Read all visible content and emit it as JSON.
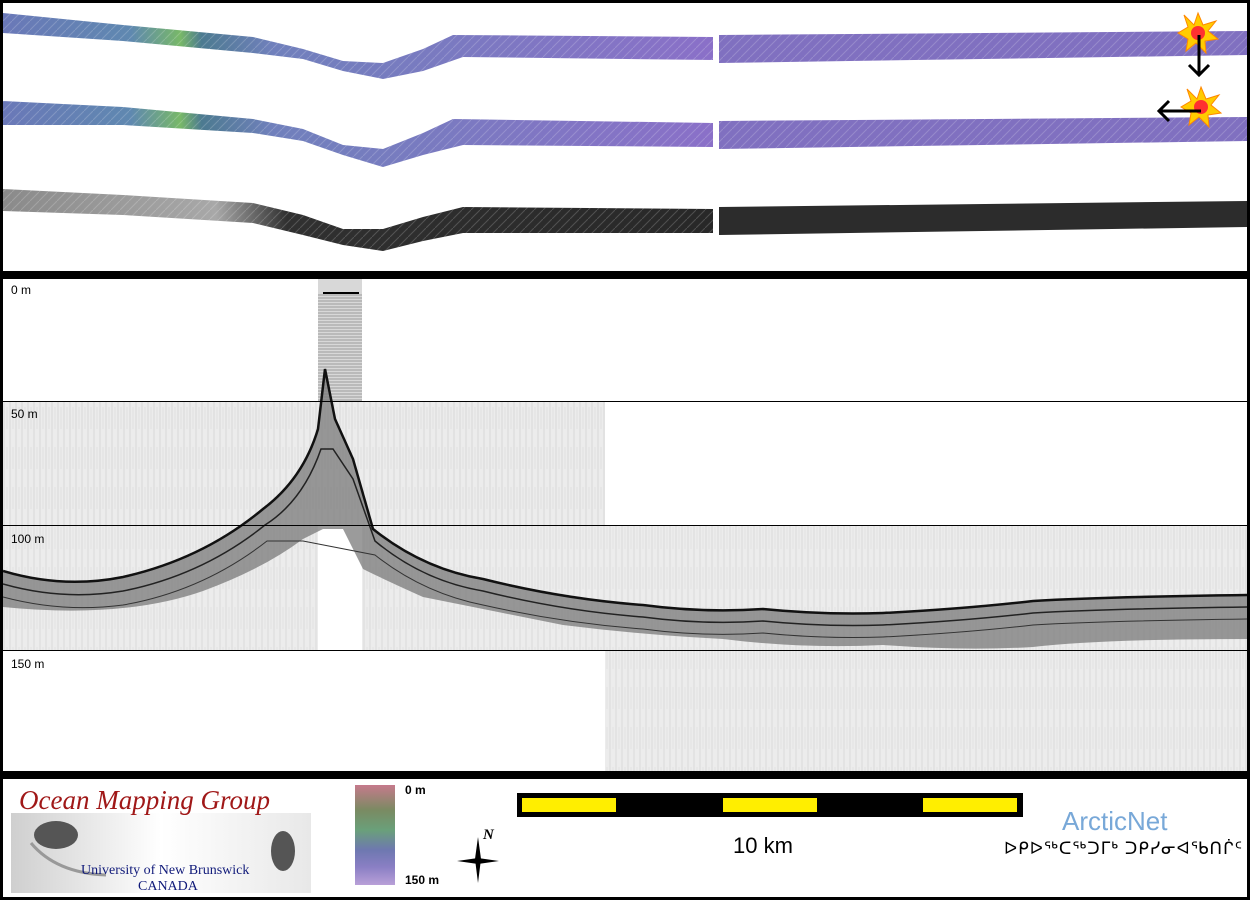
{
  "depth_axis": {
    "labels": [
      "0 m",
      "50 m",
      "100 m",
      "150 m"
    ]
  },
  "color_scale": {
    "top_label": "0 m",
    "bottom_label": "150 m"
  },
  "scale_bar": {
    "label": "10 km"
  },
  "logos": {
    "omg_title": "Ocean Mapping Group",
    "omg_sub1": "University of New Brunswick",
    "omg_sub2": "CANADA",
    "arcticnet_name": "ArcticNet",
    "arcticnet_sub": "ᐅᑭᐅᖅᑕᖅᑐᒥᒃ ᑐᑭᓯᓂᐊᖃᑎᒌᑦ"
  },
  "north_arrow": {
    "letter": "N"
  },
  "colors": {
    "swath_purple": "#8070c0",
    "swath_green": "#70c070",
    "scale_yellow": "#ffee00"
  },
  "icons": [
    "sun-icon",
    "arrow-down-icon",
    "arrow-left-icon",
    "north-arrow-icon"
  ]
}
